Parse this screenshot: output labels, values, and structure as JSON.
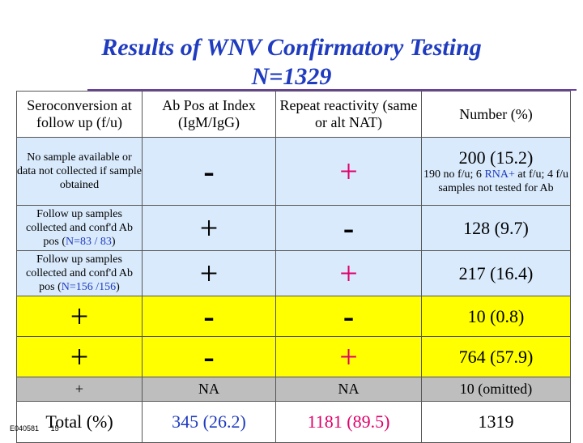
{
  "title_line1": "Results of WNV Confirmatory Testing",
  "title_line2": "N=1329",
  "header": {
    "col1": "Seroconversion at follow up (f/u)",
    "col2": "Ab Pos at Index (IgM/IgG)",
    "col3": "Repeat reactivity (same or alt NAT)",
    "col4": "Number (%)"
  },
  "rows": [
    {
      "seroconversion": "No sample available or data not collected if sample obtained",
      "ab_pos": "-",
      "repeat": "+",
      "number": "200 (15.2)",
      "note_prefix": "190 no f/u; 6 ",
      "note_highlight": "RNA+",
      "note_suffix": " at f/u; 4 f/u samples not tested for Ab"
    },
    {
      "seroconversion_prefix": "Follow up samples collected and conf'd Ab pos (",
      "seroconversion_n": "N=83 / 83",
      "seroconversion_suffix": ")",
      "ab_pos": "+",
      "repeat": "-",
      "number": "128 (9.7)"
    },
    {
      "seroconversion_prefix": "Follow up samples collected and conf'd Ab pos (",
      "seroconversion_n": "N=156 /156",
      "seroconversion_suffix": ")",
      "ab_pos": "+",
      "repeat": "+",
      "number": "217 (16.4)"
    },
    {
      "seroconversion": "+",
      "ab_pos": "-",
      "repeat": "-",
      "number": "10 (0.8)"
    },
    {
      "seroconversion": "+",
      "ab_pos": "-",
      "repeat": "+",
      "number": "764 (57.9)"
    },
    {
      "seroconversion": "+",
      "ab_pos": "NA",
      "repeat": "NA",
      "number": "10 (omitted)"
    }
  ],
  "total": {
    "label": "Total (%)",
    "ab_pos": "345 (26.2)",
    "repeat": "1181 (89.5)",
    "number": "1319"
  },
  "footer": {
    "code": "E040581",
    "page": "15"
  },
  "colors": {
    "title": "#1f3bbf",
    "row_blue": "#d9eafc",
    "row_yellow": "#ffff00",
    "row_gray": "#bebebe",
    "plus_red": "#e0006a",
    "n_blue": "#1f3bbf"
  }
}
